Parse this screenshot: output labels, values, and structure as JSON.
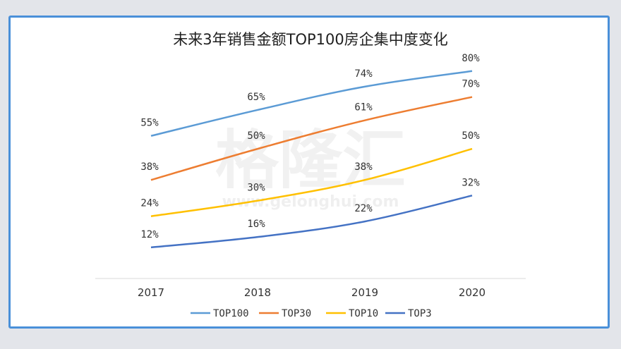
{
  "chart_data": {
    "type": "line",
    "title": "未来3年销售金额TOP100房企集中度变化",
    "categories": [
      "2017",
      "2018",
      "2019",
      "2020"
    ],
    "series": [
      {
        "name": "TOP100",
        "values": [
          55,
          65,
          74,
          80
        ],
        "labels": [
          "55%",
          "65%",
          "74%",
          "80%"
        ],
        "color": "#5b9bd5"
      },
      {
        "name": "TOP30",
        "values": [
          38,
          50,
          61,
          70
        ],
        "labels": [
          "38%",
          "50%",
          "61%",
          "70%"
        ],
        "color": "#ed7d31"
      },
      {
        "name": "TOP10",
        "values": [
          24,
          30,
          38,
          50
        ],
        "labels": [
          "24%",
          "30%",
          "38%",
          "50%"
        ],
        "color": "#ffc000"
      },
      {
        "name": "TOP3",
        "values": [
          12,
          16,
          22,
          32
        ],
        "labels": [
          "12%",
          "16%",
          "22%",
          "32%"
        ],
        "color": "#4472c4"
      }
    ],
    "ylim": [
      0,
      90
    ],
    "grid": false,
    "legend": "bottom"
  },
  "watermark": {
    "text": "格隆汇",
    "url": "www.gelonghui.com"
  }
}
